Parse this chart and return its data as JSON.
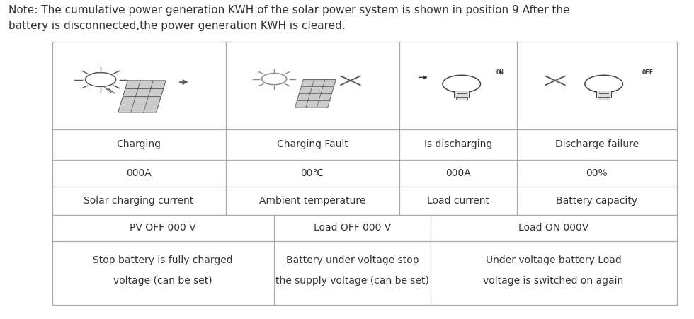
{
  "note_line1": "Note: The cumulative power generation KWH of the solar power system is shown in position 9 After the",
  "note_line2": "battery is disconnected,the power generation KWH is cleared.",
  "bg_color": "#ffffff",
  "line_color": "#aaaaaa",
  "text_color": "#333333",
  "note_fontsize": 11.0,
  "cell_fontsize": 10.0,
  "upper_cols": [
    0.075,
    0.325,
    0.575,
    0.745,
    0.975
  ],
  "upper_rows": [
    0.87,
    0.595,
    0.5,
    0.415,
    0.325
  ],
  "lower_cols": [
    0.075,
    0.395,
    0.62,
    0.975
  ],
  "lower_rows": [
    0.325,
    0.245,
    0.045
  ],
  "row1_labels": [
    "Charging",
    "Charging Fault",
    "Is discharging",
    "Discharge failure"
  ],
  "row2_labels": [
    "000A",
    "00℃",
    "000A",
    "00%"
  ],
  "row3_labels": [
    "Solar charging current",
    "Ambient temperature",
    "Load current",
    "Battery capacity"
  ],
  "lower_row1": [
    "PV OFF 000 V",
    "Load OFF 000 V",
    "Load ON 000V"
  ],
  "lower_row2_top": [
    "Stop battery is fully charged",
    "Battery under voltage stop",
    "Under voltage battery Load"
  ],
  "lower_row2_bot": [
    "voltage (can be set)",
    "the supply voltage (can be set)",
    "voltage is switched on again"
  ]
}
